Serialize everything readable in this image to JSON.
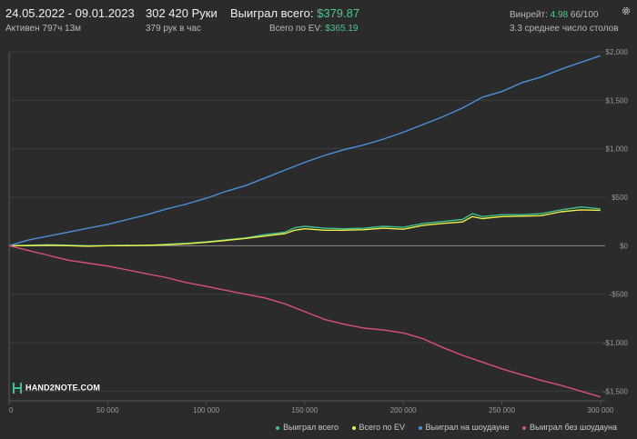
{
  "header": {
    "date_range": "24.05.2022 - 09.01.2023",
    "active": "Активен 797ч 13м",
    "hands": "302 420 Руки",
    "hands_per_hour": "379 рук в час",
    "won_total_label": "Выиграл всего:",
    "won_total_value": "$379.87",
    "ev_label": "Всего по EV:",
    "ev_value": "$365.19",
    "winrate_label": "Винрейт:",
    "winrate_value": "4.98",
    "winrate_extra": "66/100",
    "avg_tables": "3.3 среднее число столов"
  },
  "logo_text": "HAND2NOTE.COM",
  "colors": {
    "background": "#2b2b2b",
    "won_total": "#3ec18b",
    "ev": "#eef04a",
    "showdown": "#4a90d9",
    "no_showdown": "#d9507a",
    "accent_green": "#49c98a"
  },
  "chart_data": {
    "type": "line",
    "x_ticks": [
      0,
      50000,
      100000,
      150000,
      200000,
      250000,
      300000
    ],
    "x_tick_labels": [
      "0",
      "50 000",
      "100 000",
      "150 000",
      "200 000",
      "250 000",
      "300 000"
    ],
    "y_ticks": [
      -1500,
      -1000,
      -500,
      0,
      500,
      1000,
      1500,
      2000
    ],
    "y_tick_labels": [
      "-$1,500",
      "-$1,000",
      "-$500",
      "$0",
      "$500",
      "$1,000",
      "$1,500",
      "$2,000"
    ],
    "xlim": [
      0,
      302420
    ],
    "ylim": [
      -1600,
      2000
    ],
    "grid": true,
    "legend_position": "bottom-right",
    "series": [
      {
        "name": "Выиграл всего",
        "color": "#3ec18b",
        "x": [
          0,
          10000,
          20000,
          30000,
          40000,
          50000,
          60000,
          70000,
          80000,
          90000,
          100000,
          110000,
          120000,
          130000,
          140000,
          145000,
          150000,
          160000,
          170000,
          180000,
          190000,
          200000,
          210000,
          220000,
          230000,
          235000,
          240000,
          250000,
          260000,
          270000,
          280000,
          290000,
          300000
        ],
        "y": [
          0,
          5,
          10,
          5,
          0,
          0,
          5,
          0,
          15,
          25,
          40,
          60,
          80,
          115,
          140,
          185,
          200,
          180,
          175,
          180,
          200,
          190,
          230,
          250,
          270,
          330,
          300,
          320,
          320,
          330,
          370,
          400,
          380
        ]
      },
      {
        "name": "Всего по EV",
        "color": "#eef04a",
        "x": [
          0,
          10000,
          20000,
          30000,
          40000,
          50000,
          60000,
          70000,
          80000,
          90000,
          100000,
          110000,
          120000,
          130000,
          140000,
          145000,
          150000,
          160000,
          170000,
          180000,
          190000,
          200000,
          210000,
          220000,
          230000,
          235000,
          240000,
          250000,
          260000,
          270000,
          280000,
          290000,
          300000
        ],
        "y": [
          0,
          0,
          5,
          0,
          -5,
          0,
          0,
          5,
          10,
          20,
          35,
          55,
          75,
          100,
          125,
          160,
          175,
          160,
          160,
          165,
          180,
          170,
          210,
          230,
          245,
          300,
          280,
          300,
          305,
          310,
          350,
          370,
          365
        ]
      },
      {
        "name": "Выиграл на шоудауне",
        "color": "#4a90d9",
        "x": [
          0,
          10000,
          20000,
          30000,
          40000,
          50000,
          60000,
          70000,
          80000,
          90000,
          100000,
          110000,
          120000,
          130000,
          140000,
          150000,
          160000,
          170000,
          180000,
          190000,
          200000,
          210000,
          220000,
          230000,
          240000,
          250000,
          260000,
          270000,
          280000,
          290000,
          300000
        ],
        "y": [
          0,
          60,
          100,
          140,
          180,
          220,
          270,
          320,
          380,
          430,
          490,
          560,
          620,
          700,
          780,
          860,
          930,
          990,
          1040,
          1100,
          1170,
          1250,
          1330,
          1420,
          1530,
          1590,
          1680,
          1740,
          1820,
          1890,
          1960
        ]
      },
      {
        "name": "Выиграл без шоудауна",
        "color": "#d9507a",
        "x": [
          0,
          10000,
          20000,
          30000,
          40000,
          50000,
          60000,
          70000,
          80000,
          90000,
          100000,
          110000,
          120000,
          130000,
          140000,
          150000,
          160000,
          170000,
          180000,
          190000,
          200000,
          210000,
          220000,
          230000,
          240000,
          250000,
          260000,
          270000,
          280000,
          290000,
          300000
        ],
        "y": [
          0,
          -50,
          -100,
          -150,
          -180,
          -210,
          -250,
          -290,
          -330,
          -380,
          -420,
          -460,
          -500,
          -540,
          -600,
          -680,
          -760,
          -810,
          -850,
          -870,
          -900,
          -960,
          -1050,
          -1130,
          -1200,
          -1270,
          -1330,
          -1390,
          -1440,
          -1500,
          -1560
        ]
      }
    ]
  }
}
